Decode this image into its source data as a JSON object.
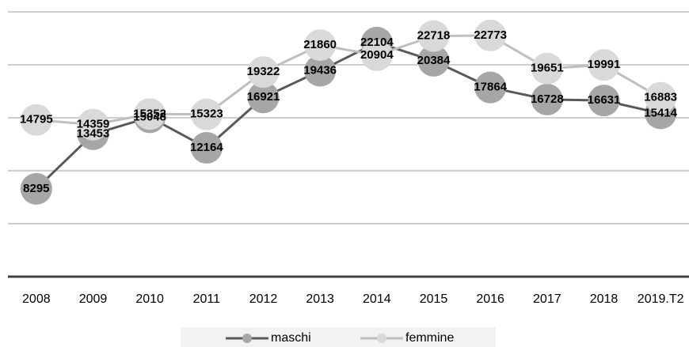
{
  "chart_data": {
    "type": "line",
    "categories": [
      "2008",
      "2009",
      "2010",
      "2011",
      "2012",
      "2013",
      "2014",
      "2015",
      "2016",
      "2017",
      "2018",
      "2019.T2"
    ],
    "series": [
      {
        "name": "maschi",
        "color": "#a6a6a6",
        "line_color": "#595959",
        "values": [
          8295,
          13453,
          15048,
          12164,
          16921,
          19436,
          22104,
          20384,
          17864,
          16728,
          16631,
          15414
        ]
      },
      {
        "name": "femmine",
        "color": "#d9d9d9",
        "line_color": "#bfbfbf",
        "values": [
          14795,
          14359,
          15352,
          15323,
          19322,
          21860,
          20904,
          22718,
          22773,
          19651,
          19991,
          16883
        ]
      }
    ],
    "ylim": [
      0,
      25000
    ],
    "yticks": [
      0,
      5000,
      10000,
      15000,
      20000,
      25000
    ],
    "grid": true,
    "legend": "bottom"
  }
}
